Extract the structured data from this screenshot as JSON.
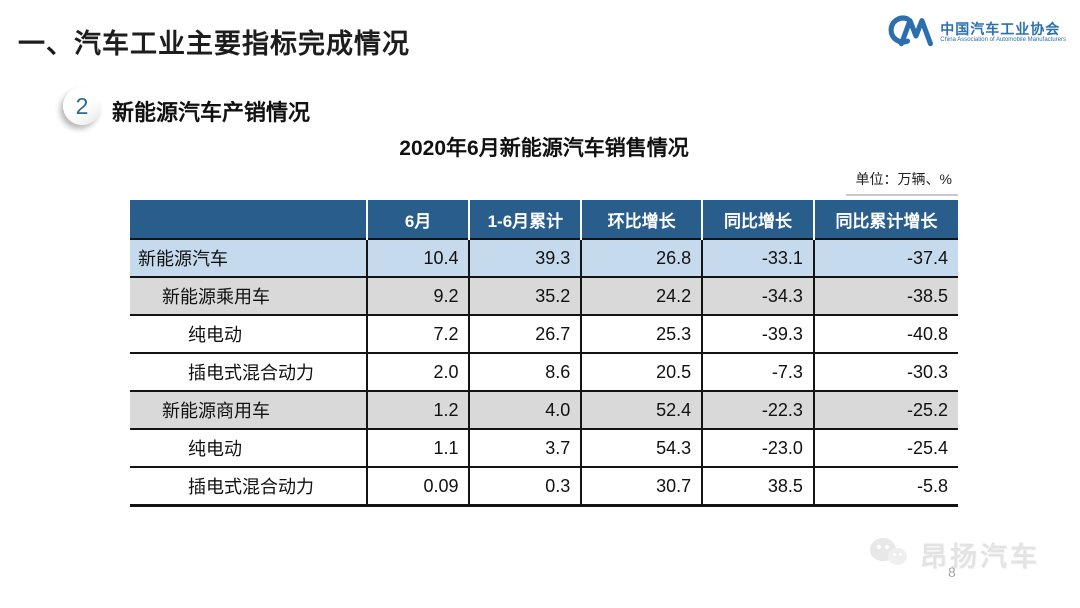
{
  "slide": {
    "title": "一、汽车工业主要指标完成情况",
    "section_number": "2",
    "section_title": "新能源汽车产销情况",
    "page_number": "8",
    "watermark_text": "昂扬汽车"
  },
  "logo": {
    "name_cn": "中国汽车工业协会",
    "name_en": "China Association of Automobile Manufacturers"
  },
  "table": {
    "title": "2020年6月新能源汽车销售情况",
    "unit_note": "单位：万辆、%",
    "columns": [
      "",
      "6月",
      "1-6月累计",
      "环比增长",
      "同比增长",
      "同比累计增长"
    ],
    "rows": [
      {
        "label": "新能源汽车",
        "indent": 0,
        "style": "blue",
        "values": [
          "10.4",
          "39.3",
          "26.8",
          "-33.1",
          "-37.4"
        ]
      },
      {
        "label": "新能源乘用车",
        "indent": 1,
        "style": "gray",
        "values": [
          "9.2",
          "35.2",
          "24.2",
          "-34.3",
          "-38.5"
        ]
      },
      {
        "label": "纯电动",
        "indent": 2,
        "style": "white",
        "values": [
          "7.2",
          "26.7",
          "25.3",
          "-39.3",
          "-40.8"
        ]
      },
      {
        "label": "插电式混合动力",
        "indent": 2,
        "style": "white",
        "values": [
          "2.0",
          "8.6",
          "20.5",
          "-7.3",
          "-30.3"
        ]
      },
      {
        "label": "新能源商用车",
        "indent": 1,
        "style": "gray",
        "values": [
          "1.2",
          "4.0",
          "52.4",
          "-22.3",
          "-25.2"
        ]
      },
      {
        "label": "纯电动",
        "indent": 2,
        "style": "white",
        "values": [
          "1.1",
          "3.7",
          "54.3",
          "-23.0",
          "-25.4"
        ]
      },
      {
        "label": "插电式混合动力",
        "indent": 2,
        "style": "white",
        "values": [
          "0.09",
          "0.3",
          "30.7",
          "38.5",
          "-5.8"
        ]
      }
    ]
  },
  "colors": {
    "header_bg": "#295D8C",
    "row_highlight_blue": "#C6DAEE",
    "row_gray": "#D9D9D9",
    "logo_blue": "#2C6FAE",
    "badge_number_blue": "#2F6A94"
  },
  "chart_data": {
    "type": "table",
    "title": "2020年6月新能源汽车销售情况",
    "unit": "万辆、%",
    "columns": [
      "",
      "6月",
      "1-6月累计",
      "环比增长",
      "同比增长",
      "同比累计增长"
    ],
    "rows": [
      [
        "新能源汽车",
        10.4,
        39.3,
        26.8,
        -33.1,
        -37.4
      ],
      [
        "新能源乘用车",
        9.2,
        35.2,
        24.2,
        -34.3,
        -38.5
      ],
      [
        "纯电动",
        7.2,
        26.7,
        25.3,
        -39.3,
        -40.8
      ],
      [
        "插电式混合动力",
        2.0,
        8.6,
        20.5,
        -7.3,
        -30.3
      ],
      [
        "新能源商用车",
        1.2,
        4.0,
        52.4,
        -22.3,
        -25.2
      ],
      [
        "纯电动",
        1.1,
        3.7,
        54.3,
        -23.0,
        -25.4
      ],
      [
        "插电式混合动力",
        0.09,
        0.3,
        30.7,
        38.5,
        -5.8
      ]
    ]
  }
}
